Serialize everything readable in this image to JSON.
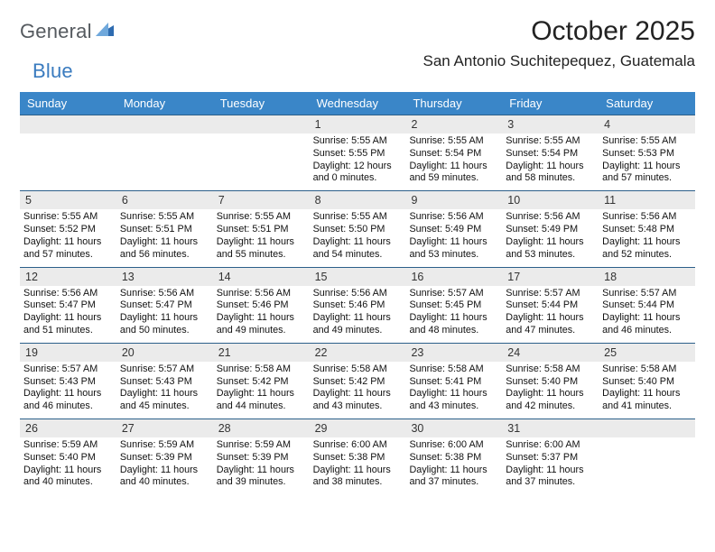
{
  "colors": {
    "header_bg": "#3a86c8",
    "header_text": "#ffffff",
    "daynum_bg": "#ebebeb",
    "week_border": "#2c5f8a",
    "page_bg": "#ffffff",
    "body_text": "#111111",
    "logo_gray": "#555a5f",
    "logo_blue": "#3a7bbf"
  },
  "logo": {
    "text_a": "General",
    "text_b": "Blue"
  },
  "title": "October 2025",
  "location": "San Antonio Suchitepequez, Guatemala",
  "day_headers": [
    "Sunday",
    "Monday",
    "Tuesday",
    "Wednesday",
    "Thursday",
    "Friday",
    "Saturday"
  ],
  "fonts": {
    "title_size": 30,
    "location_size": 17,
    "header_size": 13,
    "daynum_size": 12.5,
    "body_size": 10.8
  },
  "weeks": [
    [
      {
        "n": "",
        "lines": []
      },
      {
        "n": "",
        "lines": []
      },
      {
        "n": "",
        "lines": []
      },
      {
        "n": "1",
        "lines": [
          "Sunrise: 5:55 AM",
          "Sunset: 5:55 PM",
          "Daylight: 12 hours and 0 minutes."
        ]
      },
      {
        "n": "2",
        "lines": [
          "Sunrise: 5:55 AM",
          "Sunset: 5:54 PM",
          "Daylight: 11 hours and 59 minutes."
        ]
      },
      {
        "n": "3",
        "lines": [
          "Sunrise: 5:55 AM",
          "Sunset: 5:54 PM",
          "Daylight: 11 hours and 58 minutes."
        ]
      },
      {
        "n": "4",
        "lines": [
          "Sunrise: 5:55 AM",
          "Sunset: 5:53 PM",
          "Daylight: 11 hours and 57 minutes."
        ]
      }
    ],
    [
      {
        "n": "5",
        "lines": [
          "Sunrise: 5:55 AM",
          "Sunset: 5:52 PM",
          "Daylight: 11 hours and 57 minutes."
        ]
      },
      {
        "n": "6",
        "lines": [
          "Sunrise: 5:55 AM",
          "Sunset: 5:51 PM",
          "Daylight: 11 hours and 56 minutes."
        ]
      },
      {
        "n": "7",
        "lines": [
          "Sunrise: 5:55 AM",
          "Sunset: 5:51 PM",
          "Daylight: 11 hours and 55 minutes."
        ]
      },
      {
        "n": "8",
        "lines": [
          "Sunrise: 5:55 AM",
          "Sunset: 5:50 PM",
          "Daylight: 11 hours and 54 minutes."
        ]
      },
      {
        "n": "9",
        "lines": [
          "Sunrise: 5:56 AM",
          "Sunset: 5:49 PM",
          "Daylight: 11 hours and 53 minutes."
        ]
      },
      {
        "n": "10",
        "lines": [
          "Sunrise: 5:56 AM",
          "Sunset: 5:49 PM",
          "Daylight: 11 hours and 53 minutes."
        ]
      },
      {
        "n": "11",
        "lines": [
          "Sunrise: 5:56 AM",
          "Sunset: 5:48 PM",
          "Daylight: 11 hours and 52 minutes."
        ]
      }
    ],
    [
      {
        "n": "12",
        "lines": [
          "Sunrise: 5:56 AM",
          "Sunset: 5:47 PM",
          "Daylight: 11 hours and 51 minutes."
        ]
      },
      {
        "n": "13",
        "lines": [
          "Sunrise: 5:56 AM",
          "Sunset: 5:47 PM",
          "Daylight: 11 hours and 50 minutes."
        ]
      },
      {
        "n": "14",
        "lines": [
          "Sunrise: 5:56 AM",
          "Sunset: 5:46 PM",
          "Daylight: 11 hours and 49 minutes."
        ]
      },
      {
        "n": "15",
        "lines": [
          "Sunrise: 5:56 AM",
          "Sunset: 5:46 PM",
          "Daylight: 11 hours and 49 minutes."
        ]
      },
      {
        "n": "16",
        "lines": [
          "Sunrise: 5:57 AM",
          "Sunset: 5:45 PM",
          "Daylight: 11 hours and 48 minutes."
        ]
      },
      {
        "n": "17",
        "lines": [
          "Sunrise: 5:57 AM",
          "Sunset: 5:44 PM",
          "Daylight: 11 hours and 47 minutes."
        ]
      },
      {
        "n": "18",
        "lines": [
          "Sunrise: 5:57 AM",
          "Sunset: 5:44 PM",
          "Daylight: 11 hours and 46 minutes."
        ]
      }
    ],
    [
      {
        "n": "19",
        "lines": [
          "Sunrise: 5:57 AM",
          "Sunset: 5:43 PM",
          "Daylight: 11 hours and 46 minutes."
        ]
      },
      {
        "n": "20",
        "lines": [
          "Sunrise: 5:57 AM",
          "Sunset: 5:43 PM",
          "Daylight: 11 hours and 45 minutes."
        ]
      },
      {
        "n": "21",
        "lines": [
          "Sunrise: 5:58 AM",
          "Sunset: 5:42 PM",
          "Daylight: 11 hours and 44 minutes."
        ]
      },
      {
        "n": "22",
        "lines": [
          "Sunrise: 5:58 AM",
          "Sunset: 5:42 PM",
          "Daylight: 11 hours and 43 minutes."
        ]
      },
      {
        "n": "23",
        "lines": [
          "Sunrise: 5:58 AM",
          "Sunset: 5:41 PM",
          "Daylight: 11 hours and 43 minutes."
        ]
      },
      {
        "n": "24",
        "lines": [
          "Sunrise: 5:58 AM",
          "Sunset: 5:40 PM",
          "Daylight: 11 hours and 42 minutes."
        ]
      },
      {
        "n": "25",
        "lines": [
          "Sunrise: 5:58 AM",
          "Sunset: 5:40 PM",
          "Daylight: 11 hours and 41 minutes."
        ]
      }
    ],
    [
      {
        "n": "26",
        "lines": [
          "Sunrise: 5:59 AM",
          "Sunset: 5:40 PM",
          "Daylight: 11 hours and 40 minutes."
        ]
      },
      {
        "n": "27",
        "lines": [
          "Sunrise: 5:59 AM",
          "Sunset: 5:39 PM",
          "Daylight: 11 hours and 40 minutes."
        ]
      },
      {
        "n": "28",
        "lines": [
          "Sunrise: 5:59 AM",
          "Sunset: 5:39 PM",
          "Daylight: 11 hours and 39 minutes."
        ]
      },
      {
        "n": "29",
        "lines": [
          "Sunrise: 6:00 AM",
          "Sunset: 5:38 PM",
          "Daylight: 11 hours and 38 minutes."
        ]
      },
      {
        "n": "30",
        "lines": [
          "Sunrise: 6:00 AM",
          "Sunset: 5:38 PM",
          "Daylight: 11 hours and 37 minutes."
        ]
      },
      {
        "n": "31",
        "lines": [
          "Sunrise: 6:00 AM",
          "Sunset: 5:37 PM",
          "Daylight: 11 hours and 37 minutes."
        ]
      },
      {
        "n": "",
        "lines": []
      }
    ]
  ]
}
